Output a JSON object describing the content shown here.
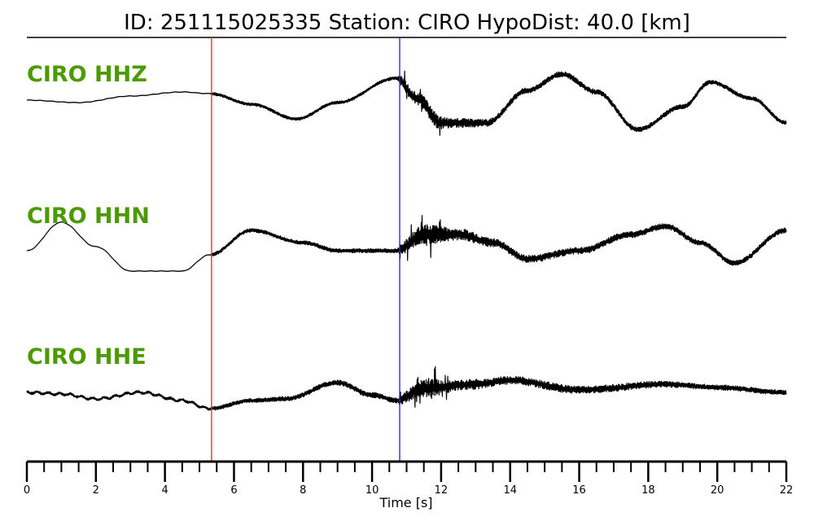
{
  "title": "ID: 251115025335   Station: CIRO   HypoDist:     40.0 [km]",
  "colors": {
    "trace": "#000000",
    "label": "#4a9a00",
    "p_pick": "#e8332a",
    "s_pick": "#2a2ae8",
    "axis": "#000000"
  },
  "chart_data": {
    "type": "line",
    "title": "ID: 251115025335   Station: CIRO   HypoDist:     40.0 [km]",
    "xlabel": "Time [s]",
    "xlim": [
      0,
      22
    ],
    "xticks": [
      0,
      2,
      4,
      6,
      8,
      10,
      12,
      14,
      16,
      18,
      20,
      22
    ],
    "minor_tick_step": 0.5,
    "grid": false,
    "picks": [
      {
        "phase": "P",
        "time": 5.35,
        "color": "#e8332a"
      },
      {
        "phase": "S",
        "time": 10.8,
        "color": "#2a2ae8"
      }
    ],
    "series": [
      {
        "name": "CIRO HHZ",
        "envelope": {
          "t": [
            0,
            5.3,
            5.4,
            10.7,
            10.9,
            11.6,
            12.5,
            14,
            22
          ],
          "amp": [
            0.2,
            0.2,
            1.8,
            2.0,
            7.0,
            9.0,
            5.5,
            3.5,
            2.5
          ]
        },
        "background": {
          "t": [
            0,
            1.5,
            3.0,
            4.5,
            5.3,
            6.5,
            7.8,
            9.0,
            10.7,
            11.3,
            12.0,
            13.3,
            14.5,
            15.5,
            16.5,
            17.7,
            19.0,
            19.8,
            21.0,
            22.0
          ],
          "y": [
            8,
            5,
            13,
            18,
            16,
            3,
            -15,
            5,
            35,
            10,
            -20,
            -20,
            20,
            40,
            18,
            -28,
            0,
            30,
            10,
            -20
          ]
        }
      },
      {
        "name": "CIRO HHN",
        "envelope": {
          "t": [
            0,
            5.3,
            5.4,
            10.7,
            10.9,
            11.6,
            12.5,
            14,
            22
          ],
          "amp": [
            0.2,
            0.2,
            2.2,
            2.5,
            8.0,
            12.0,
            7.0,
            4.5,
            3.0
          ]
        },
        "background": {
          "t": [
            0,
            1.0,
            2.0,
            3.0,
            4.5,
            5.3,
            6.5,
            8.0,
            9.0,
            10.7,
            11.5,
            12.5,
            13.5,
            14.5,
            16.0,
            17.5,
            18.5,
            19.5,
            20.5,
            22.0
          ],
          "y": [
            0,
            35,
            5,
            -25,
            -25,
            -5,
            25,
            10,
            0,
            0,
            20,
            20,
            10,
            -10,
            0,
            20,
            30,
            10,
            -15,
            25
          ]
        }
      },
      {
        "name": "CIRO HHE",
        "envelope": {
          "t": [
            0,
            5.3,
            5.4,
            10.7,
            10.9,
            11.6,
            12.5,
            14,
            22
          ],
          "amp": [
            1.5,
            1.5,
            2.5,
            3.5,
            7.0,
            11.0,
            6.5,
            5.0,
            3.0
          ]
        },
        "background": {
          "t": [
            0,
            1.0,
            2.0,
            3.3,
            4.5,
            5.3,
            6.5,
            7.5,
            9.0,
            10.0,
            10.7,
            11.5,
            13.0,
            14.0,
            16.0,
            18.5,
            20.0,
            22.0
          ],
          "y": [
            0,
            -2,
            -8,
            0,
            -10,
            -20,
            -10,
            -8,
            12,
            -3,
            -10,
            5,
            10,
            15,
            3,
            10,
            6,
            0
          ]
        }
      }
    ]
  }
}
